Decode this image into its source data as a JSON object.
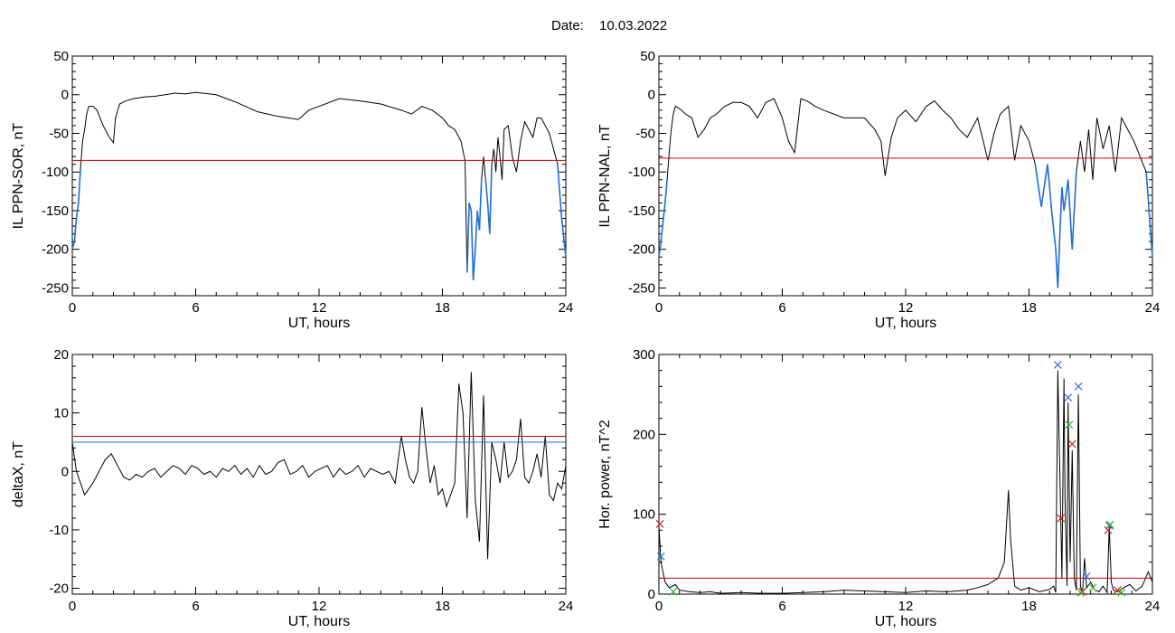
{
  "date_label": "Date:",
  "date_value": "10.03.2022",
  "colors": {
    "trace": "#000000",
    "threshold": "#cc0000",
    "alt_threshold": "#1f6fd6",
    "below": "#1f6fd6",
    "mark_blue": "#2a6fd6",
    "mark_red": "#cc2222",
    "mark_green": "#33bb33"
  },
  "chart_data": [
    {
      "type": "line",
      "xlabel": "UT, hours",
      "ylabel": "IL PPN-SOR, nT",
      "xlim": [
        0,
        24
      ],
      "ylim": [
        -260,
        50
      ],
      "xticks": [
        0,
        6,
        12,
        18,
        24
      ],
      "yticks": [
        50,
        0,
        -50,
        -100,
        -150,
        -200,
        -250
      ],
      "threshold": -85,
      "series": [
        {
          "x": [
            0,
            0.1,
            0.2,
            0.3,
            0.4,
            0.5,
            0.6,
            0.7,
            0.8,
            1,
            1.2,
            1.5,
            1.8,
            2,
            2.1,
            2.3,
            2.6,
            3,
            3.5,
            4,
            4.5,
            5,
            5.5,
            6,
            7,
            8,
            9,
            10,
            10.5,
            11,
            11.5,
            12,
            13,
            14,
            15,
            16,
            16.5,
            17,
            17.5,
            18,
            18.3,
            18.6,
            18.9,
            19.1,
            19.2,
            19.3,
            19.4,
            19.5,
            19.6,
            19.7,
            19.8,
            19.9,
            20,
            20.1,
            20.2,
            20.3,
            20.4,
            20.5,
            20.6,
            20.7,
            20.8,
            20.9,
            21,
            21.2,
            21.4,
            21.6,
            21.8,
            22,
            22.2,
            22.4,
            22.6,
            22.8,
            23,
            23.2,
            23.4,
            23.6,
            23.8,
            24
          ],
          "values": [
            -200,
            -190,
            -160,
            -140,
            -95,
            -60,
            -45,
            -25,
            -15,
            -15,
            -20,
            -40,
            -55,
            -62,
            -30,
            -12,
            -8,
            -5,
            -3,
            -2,
            0,
            2,
            1,
            3,
            0,
            -10,
            -22,
            -28,
            -30,
            -32,
            -20,
            -15,
            -5,
            -8,
            -12,
            -20,
            -25,
            -15,
            -20,
            -30,
            -40,
            -45,
            -60,
            -85,
            -230,
            -140,
            -150,
            -240,
            -200,
            -150,
            -175,
            -110,
            -80,
            -110,
            -140,
            -180,
            -90,
            -70,
            -100,
            -55,
            -80,
            -110,
            -45,
            -40,
            -80,
            -100,
            -60,
            -35,
            -45,
            -55,
            -30,
            -30,
            -40,
            -50,
            -70,
            -90,
            -160,
            -210
          ]
        }
      ]
    },
    {
      "type": "line",
      "xlabel": "UT, hours",
      "ylabel": "IL PPN-NAL, nT",
      "xlim": [
        0,
        24
      ],
      "ylim": [
        -260,
        50
      ],
      "xticks": [
        0,
        6,
        12,
        18,
        24
      ],
      "yticks": [
        50,
        0,
        -50,
        -100,
        -150,
        -200,
        -250
      ],
      "threshold": -82,
      "series": [
        {
          "x": [
            0,
            0.1,
            0.2,
            0.3,
            0.4,
            0.5,
            0.6,
            0.7,
            0.8,
            1,
            1.3,
            1.6,
            1.9,
            2.2,
            2.5,
            2.8,
            3.2,
            3.6,
            4,
            4.4,
            4.8,
            5.2,
            5.6,
            6,
            6.3,
            6.6,
            6.9,
            7.2,
            7.6,
            8,
            8.5,
            9,
            9.5,
            10,
            10.5,
            10.8,
            11,
            11.3,
            11.6,
            12,
            12.5,
            13,
            13.4,
            13.8,
            14.2,
            14.6,
            15,
            15.5,
            16,
            16.3,
            16.6,
            17,
            17.3,
            17.6,
            18,
            18.3,
            18.6,
            18.9,
            19.1,
            19.3,
            19.4,
            19.5,
            19.6,
            19.7,
            19.9,
            20.1,
            20.3,
            20.5,
            20.7,
            20.9,
            21.1,
            21.3,
            21.6,
            21.9,
            22.2,
            22.5,
            22.8,
            23.1,
            23.4,
            23.7,
            24
          ],
          "values": [
            -210,
            -190,
            -165,
            -140,
            -110,
            -75,
            -45,
            -25,
            -15,
            -18,
            -25,
            -30,
            -55,
            -45,
            -30,
            -25,
            -15,
            -10,
            -10,
            -15,
            -30,
            -10,
            -5,
            -30,
            -60,
            -75,
            -5,
            -8,
            -15,
            -20,
            -25,
            -30,
            -30,
            -30,
            -45,
            -60,
            -105,
            -55,
            -30,
            -20,
            -35,
            -15,
            -8,
            -20,
            -30,
            -45,
            -55,
            -30,
            -85,
            -50,
            -25,
            -15,
            -85,
            -40,
            -60,
            -90,
            -145,
            -90,
            -150,
            -200,
            -250,
            -180,
            -120,
            -150,
            -110,
            -200,
            -100,
            -60,
            -100,
            -45,
            -110,
            -30,
            -70,
            -40,
            -100,
            -30,
            -45,
            -60,
            -80,
            -100,
            -210
          ]
        }
      ]
    },
    {
      "type": "line",
      "xlabel": "UT, hours",
      "ylabel": "deltaX, nT",
      "xlim": [
        0,
        24
      ],
      "ylim": [
        -21,
        20
      ],
      "xticks": [
        0,
        6,
        12,
        18,
        24
      ],
      "yticks": [
        20,
        10,
        0,
        -10,
        -20
      ],
      "thresholds": [
        6,
        5
      ],
      "series": [
        {
          "x": [
            0,
            0.2,
            0.4,
            0.6,
            0.8,
            1,
            1.3,
            1.6,
            1.9,
            2.2,
            2.5,
            2.8,
            3.1,
            3.4,
            3.7,
            4,
            4.3,
            4.6,
            4.9,
            5.2,
            5.5,
            5.8,
            6.1,
            6.4,
            6.7,
            7,
            7.3,
            7.6,
            7.9,
            8.2,
            8.5,
            8.8,
            9.1,
            9.4,
            9.7,
            10,
            10.3,
            10.6,
            10.9,
            11.2,
            11.5,
            11.8,
            12.1,
            12.4,
            12.7,
            13,
            13.3,
            13.6,
            13.9,
            14.2,
            14.5,
            14.8,
            15.1,
            15.4,
            15.7,
            16,
            16.2,
            16.4,
            16.6,
            16.8,
            17,
            17.2,
            17.4,
            17.6,
            17.8,
            18,
            18.2,
            18.4,
            18.6,
            18.8,
            19,
            19.2,
            19.4,
            19.6,
            19.8,
            20,
            20.2,
            20.4,
            20.6,
            20.8,
            21,
            21.2,
            21.4,
            21.6,
            21.8,
            22,
            22.2,
            22.4,
            22.6,
            22.8,
            23,
            23.2,
            23.4,
            23.6,
            23.8,
            24
          ],
          "values": [
            5,
            0,
            -2,
            -4,
            -3,
            -2,
            0,
            2,
            3,
            1,
            -1,
            -1.5,
            -0.5,
            -1,
            0,
            0.5,
            -1,
            0,
            1,
            0.5,
            -0.5,
            1,
            0.5,
            -0.5,
            0,
            -1,
            0.5,
            0,
            1,
            -0.5,
            0.5,
            -1,
            1,
            -0.5,
            0,
            1.5,
            2,
            -0.5,
            0,
            1,
            -1,
            0,
            0.5,
            1,
            -1,
            0.5,
            -0.5,
            0,
            1,
            -1,
            0.5,
            0,
            -0.5,
            0,
            -2,
            6,
            2,
            -1,
            -2,
            0,
            11,
            4,
            -2,
            1,
            -4,
            -3,
            -6,
            -4,
            -2,
            15,
            10,
            -8,
            17,
            -5,
            -12,
            13,
            -15,
            5,
            2,
            -2,
            5,
            -1,
            0,
            2,
            9,
            -1,
            -2,
            0,
            3,
            -1,
            6,
            -4,
            -5,
            -2,
            -3,
            1
          ]
        }
      ]
    },
    {
      "type": "line",
      "xlabel": "UT, hours",
      "ylabel": "Hor. power, nT^2",
      "xlim": [
        0,
        24
      ],
      "ylim": [
        0,
        300
      ],
      "xticks": [
        0,
        6,
        12,
        18,
        24
      ],
      "yticks": [
        0,
        100,
        200,
        300
      ],
      "threshold": 20,
      "series": [
        {
          "x": [
            0,
            0.1,
            0.3,
            0.5,
            0.8,
            1,
            1.5,
            2,
            2.5,
            3,
            4,
            5,
            6,
            7,
            8,
            9,
            10,
            11,
            12,
            13,
            14,
            15,
            15.5,
            16,
            16.5,
            16.8,
            17,
            17.1,
            17.3,
            17.6,
            18,
            18.5,
            19,
            19.2,
            19.3,
            19.4,
            19.5,
            19.6,
            19.7,
            19.75,
            19.85,
            19.9,
            20,
            20.1,
            20.2,
            20.3,
            20.4,
            20.5,
            20.6,
            20.7,
            20.8,
            21,
            21.2,
            21.4,
            21.6,
            21.8,
            21.9,
            22,
            22.1,
            22.3,
            22.6,
            22.9,
            23.2,
            23.5,
            23.8,
            24
          ],
          "values": [
            85,
            40,
            15,
            8,
            12,
            5,
            3,
            2,
            3,
            1,
            2,
            1,
            1,
            2,
            3,
            5,
            4,
            3,
            2,
            4,
            3,
            5,
            8,
            12,
            20,
            40,
            130,
            70,
            10,
            5,
            8,
            3,
            6,
            10,
            2,
            280,
            150,
            20,
            270,
            120,
            10,
            240,
            40,
            180,
            20,
            5,
            250,
            10,
            2,
            45,
            8,
            15,
            5,
            3,
            10,
            2,
            85,
            15,
            5,
            3,
            8,
            12,
            4,
            10,
            28,
            15
          ]
        }
      ],
      "markers": {
        "blue": [
          [
            0.1,
            47
          ],
          [
            19.4,
            287
          ],
          [
            19.9,
            246
          ],
          [
            20.4,
            260
          ],
          [
            20.8,
            22
          ],
          [
            21.9,
            86
          ]
        ],
        "red": [
          [
            0.05,
            88
          ],
          [
            19.55,
            95
          ],
          [
            20.1,
            188
          ],
          [
            20.6,
            3
          ],
          [
            21.85,
            80
          ],
          [
            22.3,
            5
          ]
        ],
        "green": [
          [
            0.7,
            3
          ],
          [
            19.95,
            212
          ],
          [
            20.5,
            2
          ],
          [
            21.1,
            8
          ],
          [
            21.95,
            87
          ],
          [
            22.5,
            2
          ]
        ]
      }
    }
  ]
}
